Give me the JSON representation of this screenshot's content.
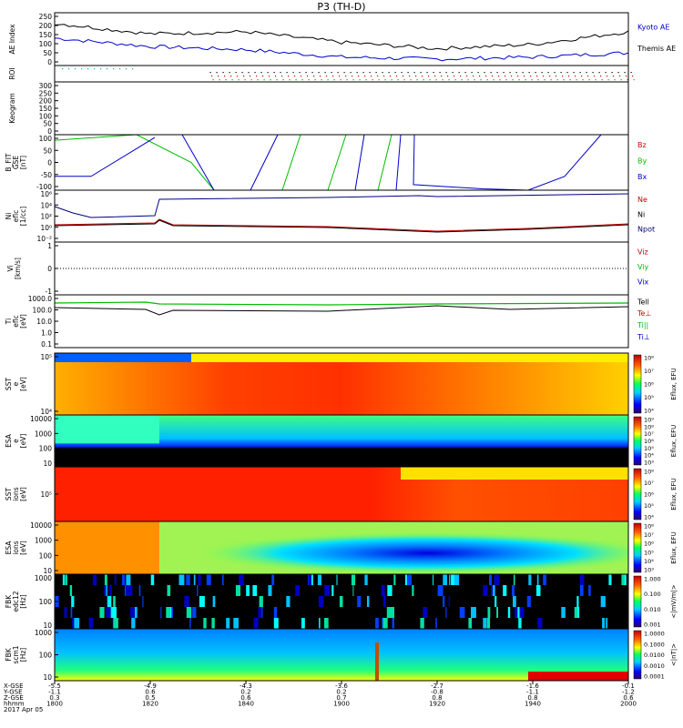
{
  "title": "P3 (TH-D)",
  "colors": {
    "black": "#000000",
    "red": "#cc0000",
    "green": "#00bb00",
    "blue": "#0000cc",
    "dblue": "#000080"
  },
  "panels": [
    {
      "id": "ae",
      "ylabel": [
        "AE Index"
      ],
      "ticks": [
        "250",
        "200",
        "150",
        "100",
        "50",
        "0"
      ],
      "legend": [
        {
          "text": "Kyoto AE",
          "color": "#0000cc"
        },
        {
          "text": "Themis AE",
          "color": "#000000"
        }
      ]
    },
    {
      "id": "roi",
      "ylabel": [
        "ROI"
      ],
      "ticks": [],
      "legend": []
    },
    {
      "id": "keogram",
      "ylabel": [
        "Keogram"
      ],
      "ticks": [
        "300",
        "250",
        "200",
        "150",
        "100",
        "50",
        "0"
      ],
      "legend": []
    },
    {
      "id": "bfit",
      "ylabel": [
        "B_FIT",
        "GSE",
        "[nT]"
      ],
      "ticks": [
        "100",
        "50",
        "0",
        "-50",
        "-100"
      ],
      "legend": [
        {
          "text": "Bz",
          "color": "#cc0000"
        },
        {
          "text": "By",
          "color": "#00bb00"
        },
        {
          "text": "Bx",
          "color": "#0000cc"
        }
      ]
    },
    {
      "id": "ni",
      "ylabel": [
        "Ni",
        "eflc",
        "[1/cc]"
      ],
      "ticks": [
        "10⁶",
        "10⁴",
        "10²",
        "10⁰",
        "10⁻²"
      ],
      "legend": [
        {
          "text": "Ne",
          "color": "#cc0000"
        },
        {
          "text": "Ni",
          "color": "#000000"
        },
        {
          "text": "Npot",
          "color": "#000080"
        }
      ]
    },
    {
      "id": "vi",
      "ylabel": [
        "Vi",
        "[km/s]"
      ],
      "ticks": [
        "1",
        "0",
        "-1"
      ],
      "legend": [
        {
          "text": "Viz",
          "color": "#cc0000"
        },
        {
          "text": "Viy",
          "color": "#00bb00"
        },
        {
          "text": "Vix",
          "color": "#0000cc"
        }
      ]
    },
    {
      "id": "ti",
      "ylabel": [
        "Ti",
        "eflc",
        "[eV]"
      ],
      "ticks": [
        "1000.0",
        "100.0",
        "10.0",
        "1.0",
        "0.1"
      ],
      "legend": [
        {
          "text": "Tell",
          "color": "#000000"
        },
        {
          "text": "Te⊥",
          "color": "#cc0000"
        },
        {
          "text": "Ti||",
          "color": "#00bb00"
        },
        {
          "text": "Ti⊥",
          "color": "#0000cc"
        }
      ]
    },
    {
      "id": "sst_e",
      "ylabel": [
        "SST",
        "e",
        "[eV]"
      ],
      "ticks": [
        "10⁵",
        "10⁴"
      ],
      "cbar": {
        "ticks": [
          "10⁸",
          "10⁷",
          "10⁶",
          "10⁵",
          "10⁴"
        ],
        "label": "Eflux, EFU"
      }
    },
    {
      "id": "esa_e",
      "ylabel": [
        "ESA",
        "e",
        "[eV]"
      ],
      "ticks": [
        "10000",
        "1000",
        "100",
        "10"
      ],
      "cbar": {
        "ticks": [
          "10⁹",
          "10⁸",
          "10⁷",
          "10⁶",
          "10⁵",
          "10⁴",
          "10³"
        ],
        "label": "Eflux, EFU"
      }
    },
    {
      "id": "sst_i",
      "ylabel": [
        "SST",
        "ions",
        "[eV]"
      ],
      "ticks": [
        "10⁵"
      ],
      "cbar": {
        "ticks": [
          "10⁸",
          "10⁷",
          "10⁶",
          "10⁵",
          "10⁴"
        ],
        "label": "Eflux, EFU"
      }
    },
    {
      "id": "esa_i",
      "ylabel": [
        "ESA",
        "ions",
        "[eV]"
      ],
      "ticks": [
        "10000",
        "1000",
        "100",
        "10"
      ],
      "cbar": {
        "ticks": [
          "10⁸",
          "10⁷",
          "10⁶",
          "10⁵",
          "10⁴",
          "10³"
        ],
        "label": "Eflux, EFU"
      }
    },
    {
      "id": "fbk_e",
      "ylabel": [
        "FBK",
        "edc12",
        "[Hz]"
      ],
      "ticks": [
        "1000",
        "100",
        "10"
      ],
      "cbar": {
        "ticks": [
          "1.000",
          "0.100",
          "0.010",
          "0.001"
        ],
        "label": "<|mV/m|>"
      }
    },
    {
      "id": "fbk_b",
      "ylabel": [
        "FBK",
        "scm1",
        "[Hz]"
      ],
      "ticks": [
        "1000",
        "100",
        "10"
      ],
      "cbar": {
        "ticks": [
          "1.0000",
          "0.1000",
          "0.0100",
          "0.0010",
          "0.0001"
        ],
        "label": "<|nT|>"
      }
    }
  ],
  "footer": {
    "rows": [
      {
        "label": "X-GSE",
        "values": [
          "-5.5",
          "-4.9",
          "-4.3",
          "-3.6",
          "-2.7",
          "-1.6",
          "-0.1"
        ]
      },
      {
        "label": "Y-GSE",
        "values": [
          "-1.1",
          "0.6",
          "0.2",
          "0.2",
          "-0.8",
          "-1.1",
          "-1.2"
        ]
      },
      {
        "label": "Z-GSE",
        "values": [
          "0.3",
          "0.5",
          "0.6",
          "0.7",
          "0.8",
          "0.8",
          "0.6"
        ]
      },
      {
        "label": "hhmm",
        "values": [
          "1800",
          "1820",
          "1840",
          "1900",
          "1920",
          "1940",
          "2000"
        ]
      }
    ],
    "date": "2017 Apr 05"
  },
  "chart_data": {
    "type": "line",
    "title": "P3 (TH-D)",
    "x": [
      "1800",
      "1820",
      "1840",
      "1900",
      "1920",
      "1940",
      "2000"
    ],
    "series": [
      {
        "name": "Kyoto AE",
        "values": [
          130,
          90,
          75,
          40,
          30,
          40,
          60
        ]
      },
      {
        "name": "Themis AE",
        "values": [
          200,
          150,
          160,
          110,
          80,
          100,
          160
        ]
      }
    ],
    "xlabel": "hhmm",
    "ylabel": "AE Index",
    "ylim": [
      0,
      250
    ]
  }
}
